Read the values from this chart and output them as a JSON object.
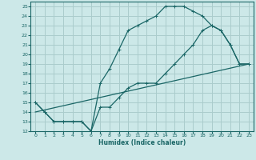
{
  "xlabel": "Humidex (Indice chaleur)",
  "ylabel": "",
  "background_color": "#cce8e8",
  "grid_color": "#aacccc",
  "line_color": "#1a6666",
  "xlim": [
    -0.5,
    23.5
  ],
  "ylim": [
    12,
    25.5
  ],
  "xticks": [
    0,
    1,
    2,
    3,
    4,
    5,
    6,
    7,
    8,
    9,
    10,
    11,
    12,
    13,
    14,
    15,
    16,
    17,
    18,
    19,
    20,
    21,
    22,
    23
  ],
  "yticks": [
    12,
    13,
    14,
    15,
    16,
    17,
    18,
    19,
    20,
    21,
    22,
    23,
    24,
    25
  ],
  "line1_x": [
    0,
    1,
    2,
    3,
    4,
    5,
    6,
    7,
    8,
    9,
    10,
    11,
    12,
    13,
    14,
    15,
    16,
    17,
    18,
    19,
    20,
    21,
    22,
    23
  ],
  "line1_y": [
    15,
    14,
    13,
    13,
    13,
    13,
    12,
    17,
    18.5,
    20.5,
    22.5,
    23,
    23.5,
    24,
    25,
    25,
    25,
    24.5,
    24,
    23,
    22.5,
    21,
    19,
    19
  ],
  "line2_x": [
    0,
    1,
    2,
    3,
    4,
    5,
    6,
    7,
    8,
    9,
    10,
    11,
    12,
    13,
    14,
    15,
    16,
    17,
    18,
    19,
    20,
    21,
    22,
    23
  ],
  "line2_y": [
    15,
    14,
    13,
    13,
    13,
    13,
    12,
    14.5,
    14.5,
    15.5,
    16.5,
    17,
    17,
    17,
    18,
    19,
    20,
    21,
    22.5,
    23,
    22.5,
    21,
    19,
    19
  ],
  "line3_x": [
    0,
    23
  ],
  "line3_y": [
    14,
    19
  ],
  "tick_fontsize": 4.5,
  "xlabel_fontsize": 5.5
}
